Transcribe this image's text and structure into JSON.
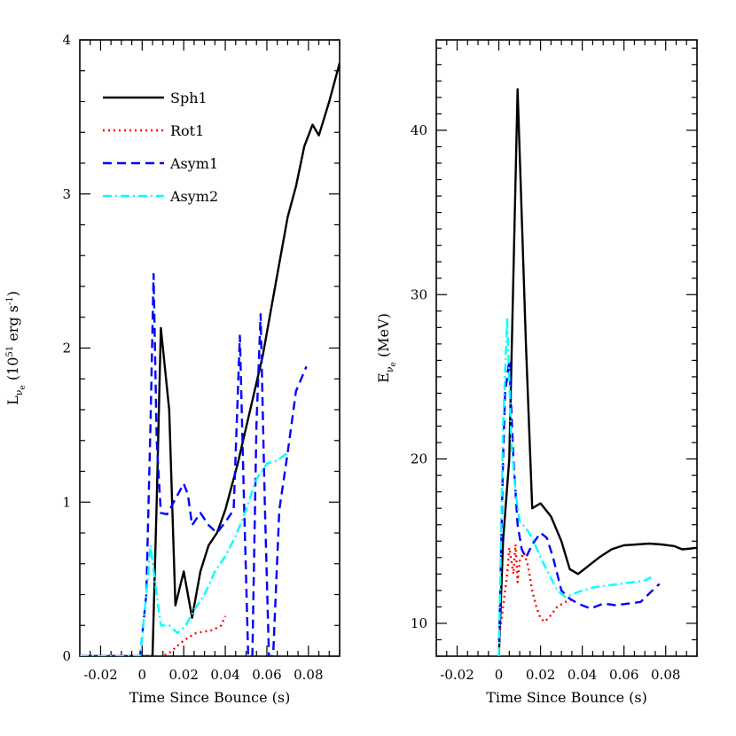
{
  "chart_data": [
    {
      "type": "line",
      "xlabel": "Time Since Bounce (s)",
      "ylabel": "L_ν̄e (10^51 erg s^-1)",
      "ylabel_parts": {
        "main": "L",
        "sub1": "ν",
        "sub2": "e",
        "open": " (10",
        "sup": "51",
        "mid": " erg s",
        "sup2": "-1",
        "close": ")"
      },
      "xlim": [
        -0.03,
        0.095
      ],
      "ylim": [
        0,
        4
      ],
      "xticks": [
        -0.02,
        0,
        0.02,
        0.04,
        0.06,
        0.08
      ],
      "xtick_labels": [
        "-0.02",
        "0",
        "0.02",
        "0.04",
        "0.06",
        "0.08"
      ],
      "yticks": [
        0,
        1,
        2,
        3,
        4
      ],
      "ytick_labels": [
        "0",
        "1",
        "2",
        "3",
        "4"
      ],
      "legend_placement": "top-left",
      "series": [
        {
          "name": "Sph1",
          "color": "#000000",
          "dash": "solid",
          "points": [
            [
              -0.03,
              0
            ],
            [
              0.005,
              0
            ],
            [
              0.007,
              1.0
            ],
            [
              0.009,
              2.13
            ],
            [
              0.013,
              1.6
            ],
            [
              0.016,
              0.33
            ],
            [
              0.02,
              0.55
            ],
            [
              0.024,
              0.25
            ],
            [
              0.028,
              0.55
            ],
            [
              0.032,
              0.72
            ],
            [
              0.036,
              0.8
            ],
            [
              0.04,
              0.95
            ],
            [
              0.046,
              1.25
            ],
            [
              0.052,
              1.6
            ],
            [
              0.058,
              1.95
            ],
            [
              0.064,
              2.4
            ],
            [
              0.07,
              2.85
            ],
            [
              0.074,
              3.05
            ],
            [
              0.078,
              3.31
            ],
            [
              0.082,
              3.45
            ],
            [
              0.085,
              3.38
            ],
            [
              0.09,
              3.6
            ],
            [
              0.095,
              3.85
            ]
          ]
        },
        {
          "name": "Rot1",
          "color": "#ff0000",
          "dash": "dotted",
          "points": [
            [
              -0.03,
              0
            ],
            [
              0.005,
              0
            ],
            [
              0.01,
              0.0
            ],
            [
              0.014,
              0.03
            ],
            [
              0.018,
              0.08
            ],
            [
              0.022,
              0.12
            ],
            [
              0.026,
              0.15
            ],
            [
              0.03,
              0.16
            ],
            [
              0.034,
              0.17
            ],
            [
              0.038,
              0.2
            ],
            [
              0.04,
              0.26
            ]
          ]
        },
        {
          "name": "Asym1",
          "color": "#0000ff",
          "dash": "dashed",
          "points": [
            [
              -0.03,
              0
            ],
            [
              -0.001,
              0
            ],
            [
              0.002,
              0.4
            ],
            [
              0.004,
              1.5
            ],
            [
              0.0055,
              2.48
            ],
            [
              0.007,
              1.4
            ],
            [
              0.009,
              0.93
            ],
            [
              0.012,
              0.92
            ],
            [
              0.016,
              1.02
            ],
            [
              0.02,
              1.12
            ],
            [
              0.022,
              1.05
            ],
            [
              0.024,
              0.85
            ],
            [
              0.028,
              0.93
            ],
            [
              0.032,
              0.85
            ],
            [
              0.036,
              0.8
            ],
            [
              0.04,
              0.87
            ],
            [
              0.044,
              0.95
            ],
            [
              0.047,
              2.08
            ],
            [
              0.049,
              1.0
            ],
            [
              0.051,
              0.0
            ],
            [
              0.053,
              0.0
            ],
            [
              0.055,
              1.5
            ],
            [
              0.057,
              2.22
            ],
            [
              0.059,
              1.0
            ],
            [
              0.061,
              0.0
            ],
            [
              0.063,
              0.0
            ],
            [
              0.066,
              0.95
            ],
            [
              0.07,
              1.32
            ],
            [
              0.074,
              1.72
            ],
            [
              0.079,
              1.88
            ]
          ]
        },
        {
          "name": "Asym2",
          "color": "#00ffff",
          "dash": "dashdot",
          "points": [
            [
              -0.03,
              0
            ],
            [
              -0.001,
              0
            ],
            [
              0.002,
              0.4
            ],
            [
              0.004,
              0.72
            ],
            [
              0.006,
              0.5
            ],
            [
              0.009,
              0.2
            ],
            [
              0.013,
              0.2
            ],
            [
              0.017,
              0.15
            ],
            [
              0.021,
              0.2
            ],
            [
              0.025,
              0.3
            ],
            [
              0.03,
              0.4
            ],
            [
              0.035,
              0.55
            ],
            [
              0.04,
              0.65
            ],
            [
              0.045,
              0.78
            ],
            [
              0.05,
              0.95
            ],
            [
              0.055,
              1.15
            ],
            [
              0.06,
              1.25
            ],
            [
              0.065,
              1.27
            ],
            [
              0.07,
              1.32
            ]
          ]
        }
      ]
    },
    {
      "type": "line",
      "xlabel": "Time Since Bounce (s)",
      "ylabel": "E_ν̄e (MeV)",
      "ylabel_parts": {
        "main": "E",
        "sub1": "ν",
        "sub2": "e",
        "open": " (MeV)"
      },
      "xlim": [
        -0.03,
        0.095
      ],
      "ylim": [
        8,
        45.5
      ],
      "xticks": [
        -0.02,
        0,
        0.02,
        0.04,
        0.06,
        0.08
      ],
      "xtick_labels": [
        "-0.02",
        "0",
        "0.02",
        "0.04",
        "0.06",
        "0.08"
      ],
      "yticks": [
        10,
        20,
        30,
        40
      ],
      "ytick_labels": [
        "10",
        "20",
        "30",
        "40"
      ],
      "series": [
        {
          "name": "Sph1",
          "color": "#000000",
          "dash": "solid",
          "points": [
            [
              0.0,
              8
            ],
            [
              0.002,
              15
            ],
            [
              0.005,
              20
            ],
            [
              0.009,
              42.5
            ],
            [
              0.013,
              27
            ],
            [
              0.016,
              17
            ],
            [
              0.02,
              17.3
            ],
            [
              0.025,
              16.5
            ],
            [
              0.03,
              15.0
            ],
            [
              0.034,
              13.3
            ],
            [
              0.038,
              13.0
            ],
            [
              0.042,
              13.4
            ],
            [
              0.048,
              14.0
            ],
            [
              0.054,
              14.5
            ],
            [
              0.06,
              14.75
            ],
            [
              0.066,
              14.8
            ],
            [
              0.072,
              14.85
            ],
            [
              0.078,
              14.8
            ],
            [
              0.084,
              14.7
            ],
            [
              0.088,
              14.5
            ],
            [
              0.092,
              14.55
            ],
            [
              0.095,
              14.6
            ]
          ]
        },
        {
          "name": "Rot1",
          "color": "#ff0000",
          "dash": "dotted",
          "points": [
            [
              0.0,
              9
            ],
            [
              0.002,
              11
            ],
            [
              0.004,
              13
            ],
            [
              0.005,
              14.6
            ],
            [
              0.007,
              13.0
            ],
            [
              0.008,
              14.8
            ],
            [
              0.009,
              12.5
            ],
            [
              0.01,
              13.8
            ],
            [
              0.012,
              14.3
            ],
            [
              0.014,
              13.5
            ],
            [
              0.016,
              12.0
            ],
            [
              0.018,
              11.0
            ],
            [
              0.02,
              10.3
            ],
            [
              0.022,
              10.1
            ],
            [
              0.025,
              10.5
            ],
            [
              0.028,
              11.0
            ],
            [
              0.032,
              11.3
            ],
            [
              0.036,
              11.5
            ]
          ]
        },
        {
          "name": "Asym1",
          "color": "#0000ff",
          "dash": "dashed",
          "points": [
            [
              0.0,
              8
            ],
            [
              0.002,
              20
            ],
            [
              0.003,
              24
            ],
            [
              0.005,
              26
            ],
            [
              0.007,
              20
            ],
            [
              0.009,
              16
            ],
            [
              0.011,
              14.5
            ],
            [
              0.013,
              14.0
            ],
            [
              0.016,
              14.8
            ],
            [
              0.02,
              15.5
            ],
            [
              0.023,
              15.2
            ],
            [
              0.026,
              14.0
            ],
            [
              0.03,
              12.0
            ],
            [
              0.034,
              11.5
            ],
            [
              0.038,
              11.2
            ],
            [
              0.044,
              10.9
            ],
            [
              0.05,
              11.2
            ],
            [
              0.056,
              11.1
            ],
            [
              0.062,
              11.2
            ],
            [
              0.068,
              11.3
            ],
            [
              0.072,
              11.8
            ],
            [
              0.077,
              12.4
            ]
          ]
        },
        {
          "name": "Asym2",
          "color": "#00ffff",
          "dash": "dashdot",
          "points": [
            [
              0.0,
              8
            ],
            [
              0.002,
              22
            ],
            [
              0.004,
              28.5
            ],
            [
              0.006,
              21
            ],
            [
              0.008,
              18
            ],
            [
              0.01,
              16.2
            ],
            [
              0.013,
              15.8
            ],
            [
              0.016,
              15.2
            ],
            [
              0.02,
              14.0
            ],
            [
              0.024,
              13.0
            ],
            [
              0.028,
              12.0
            ],
            [
              0.032,
              11.6
            ],
            [
              0.036,
              11.8
            ],
            [
              0.04,
              12.0
            ],
            [
              0.046,
              12.2
            ],
            [
              0.052,
              12.3
            ],
            [
              0.058,
              12.4
            ],
            [
              0.064,
              12.5
            ],
            [
              0.07,
              12.6
            ],
            [
              0.073,
              12.8
            ]
          ]
        }
      ]
    }
  ]
}
